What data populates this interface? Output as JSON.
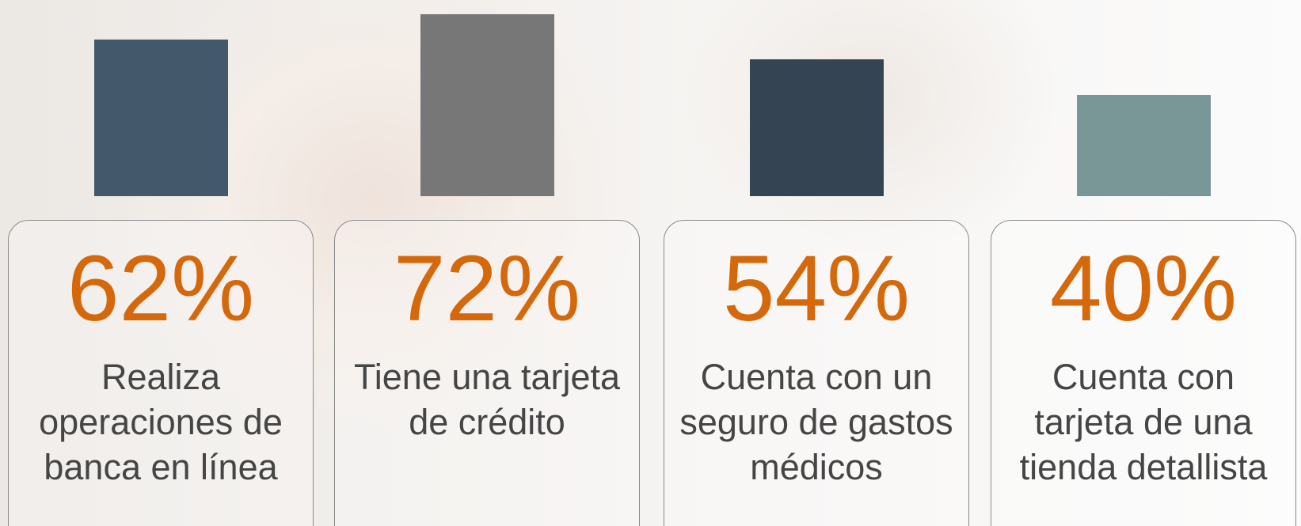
{
  "chart_data": {
    "type": "bar",
    "categories": [
      "Realiza operaciones de banca en línea",
      "Tiene una tarjeta de crédito",
      "Cuenta con un seguro de gastos médicos",
      "Cuenta con tarjeta de una tienda detallista"
    ],
    "values": [
      62,
      72,
      54,
      40
    ],
    "value_labels": [
      "62%",
      "72%",
      "54%",
      "40%"
    ],
    "colors": [
      "#44586b",
      "#777777",
      "#354453",
      "#7a9797"
    ]
  }
}
